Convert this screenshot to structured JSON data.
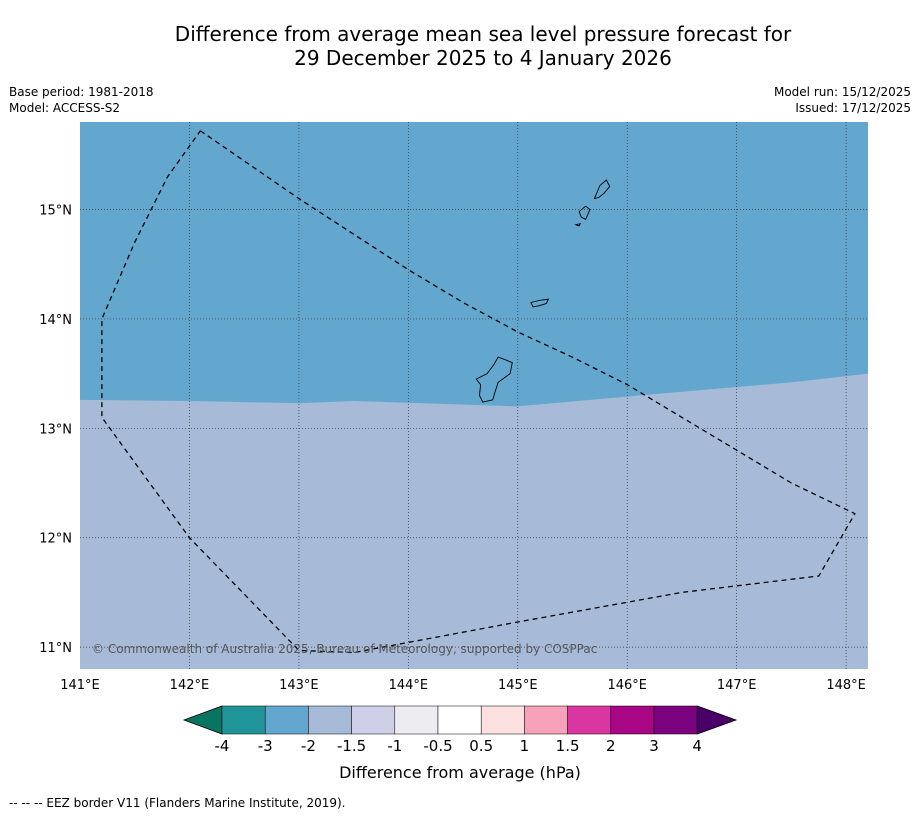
{
  "title": {
    "line1": "Difference from average mean sea level pressure forecast for",
    "line2": "29 December 2025 to 4 January 2026"
  },
  "meta": {
    "base_period": "Base period: 1981-2018",
    "model": "Model: ACCESS-S2",
    "model_run": "Model run: 15/12/2025",
    "issued": "Issued: 17/12/2025"
  },
  "map": {
    "lon_range": [
      141,
      148.2
    ],
    "lat_range": [
      10.8,
      15.8
    ],
    "lon_ticks": [
      141,
      142,
      143,
      144,
      145,
      146,
      147,
      148
    ],
    "lon_tick_labels": [
      "141°E",
      "142°E",
      "143°E",
      "144°E",
      "145°E",
      "146°E",
      "147°E",
      "148°E"
    ],
    "lat_ticks": [
      11,
      12,
      13,
      14,
      15
    ],
    "lat_tick_labels": [
      "11°N",
      "12°N",
      "13°N",
      "14°N",
      "15°N"
    ],
    "fields": [
      {
        "name": "-3 to -2 hPa",
        "color": "#64a7ce"
      },
      {
        "name": "-2 to -1.5 hPa",
        "color": "#a7bbd9"
      }
    ],
    "boundary_line": [
      [
        143.5,
        13.25
      ],
      [
        143.0,
        13.23
      ],
      [
        142.0,
        13.25
      ],
      [
        141.0,
        13.26
      ],
      [
        141.0,
        15.8
      ],
      [
        148.2,
        15.8
      ],
      [
        148.2,
        13.5
      ],
      [
        147.5,
        13.42
      ],
      [
        146.8,
        13.36
      ],
      [
        146.0,
        13.29
      ],
      [
        145.0,
        13.2
      ]
    ],
    "eez_border": [
      [
        142.1,
        15.72
      ],
      [
        143.0,
        15.1
      ],
      [
        144.0,
        14.45
      ],
      [
        144.5,
        14.15
      ],
      [
        145.0,
        13.88
      ],
      [
        145.5,
        13.65
      ],
      [
        146.0,
        13.4
      ],
      [
        146.5,
        13.1
      ],
      [
        147.0,
        12.8
      ],
      [
        147.5,
        12.5
      ],
      [
        148.08,
        12.22
      ],
      [
        147.75,
        11.65
      ],
      [
        146.5,
        11.5
      ],
      [
        145.0,
        11.23
      ],
      [
        143.5,
        10.95
      ],
      [
        143.0,
        10.97
      ],
      [
        142.0,
        12.0
      ],
      [
        141.2,
        13.1
      ],
      [
        141.2,
        14.0
      ],
      [
        141.5,
        14.7
      ],
      [
        141.8,
        15.3
      ],
      [
        142.1,
        15.72
      ]
    ],
    "islands": [
      {
        "name": "Guam",
        "outline": [
          [
            144.82,
            13.65
          ],
          [
            144.88,
            13.63
          ],
          [
            144.95,
            13.6
          ],
          [
            144.93,
            13.5
          ],
          [
            144.82,
            13.42
          ],
          [
            144.77,
            13.26
          ],
          [
            144.68,
            13.24
          ],
          [
            144.65,
            13.3
          ],
          [
            144.66,
            13.4
          ],
          [
            144.62,
            13.45
          ],
          [
            144.72,
            13.5
          ],
          [
            144.78,
            13.58
          ]
        ]
      },
      {
        "name": "Rota",
        "outline": [
          [
            145.12,
            14.15
          ],
          [
            145.2,
            14.17
          ],
          [
            145.28,
            14.18
          ],
          [
            145.26,
            14.14
          ],
          [
            145.19,
            14.12
          ],
          [
            145.14,
            14.11
          ]
        ]
      },
      {
        "name": "Tinian",
        "outline": [
          [
            145.56,
            14.98
          ],
          [
            145.62,
            15.03
          ],
          [
            145.66,
            15.0
          ],
          [
            145.62,
            14.91
          ],
          [
            145.58,
            14.93
          ]
        ]
      },
      {
        "name": "Saipan",
        "outline": [
          [
            145.7,
            15.1
          ],
          [
            145.75,
            15.22
          ],
          [
            145.81,
            15.27
          ],
          [
            145.84,
            15.21
          ],
          [
            145.79,
            15.15
          ],
          [
            145.74,
            15.11
          ]
        ]
      },
      {
        "name": "Aguijan",
        "outline": [
          [
            145.53,
            14.86
          ],
          [
            145.57,
            14.87
          ],
          [
            145.56,
            14.85
          ]
        ]
      }
    ],
    "copyright": "© Commonwealth of Australia 2025, Bureau of Meteorology, supported by COSPPac"
  },
  "colorbar": {
    "bins": [
      {
        "color": "#07755f"
      },
      {
        "color": "#1f9499"
      },
      {
        "color": "#64a7ce"
      },
      {
        "color": "#a7bbd9"
      },
      {
        "color": "#cfd0e8"
      },
      {
        "color": "#ececf1"
      },
      {
        "color": "#ffffff"
      },
      {
        "color": "#fde0e0"
      },
      {
        "color": "#f8a1bb"
      },
      {
        "color": "#d936a1"
      },
      {
        "color": "#a90686"
      },
      {
        "color": "#7c037f"
      },
      {
        "color": "#4a0068"
      }
    ],
    "tick_labels": [
      "-4",
      "-3",
      "-2",
      "-1.5",
      "-1",
      "-0.5",
      "0.5",
      "1",
      "1.5",
      "2",
      "3",
      "4"
    ],
    "label": "Difference from average (hPa)"
  },
  "footer": "--  --  -- EEZ border V11 (Flanders Marine Institute, 2019)."
}
